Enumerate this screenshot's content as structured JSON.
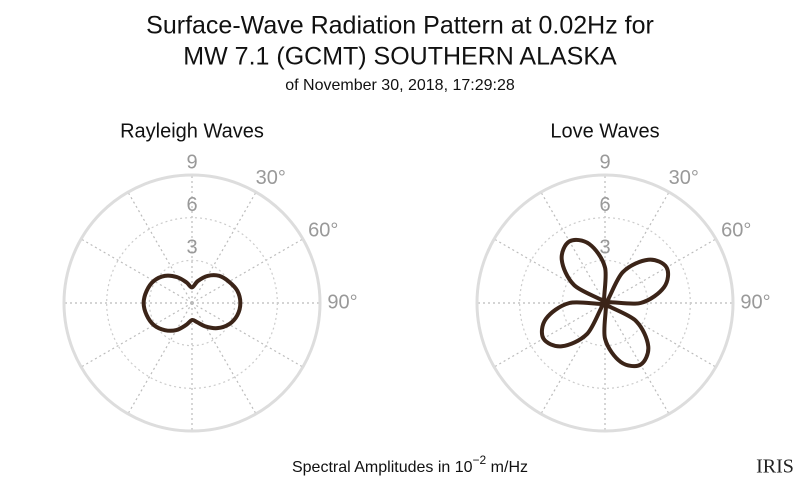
{
  "title": [
    "Surface-Wave Radiation Pattern at 0.02Hz for",
    "MW 7.1 (GCMT) SOUTHERN ALASKA"
  ],
  "subtitle": "of November 30, 2018, 17:29:28",
  "caption": {
    "text": "Spectral Amplitudes in 10",
    "sup": "−2",
    "unit": "m/Hz"
  },
  "logo": "IRIS",
  "chart_data": [
    {
      "type": "polar",
      "title": "Rayleigh Waves",
      "color": "#3b2418",
      "direction": "clockwise",
      "zero": "N",
      "rlim": [
        0,
        9
      ],
      "rticks": [
        3,
        6,
        9
      ],
      "thetaticks": [
        {
          "value": 30,
          "label": "30°"
        },
        {
          "value": 60,
          "label": "60°"
        },
        {
          "value": 90,
          "label": "90°"
        }
      ],
      "theta": [
        0,
        15,
        30,
        45,
        60,
        75,
        90,
        105,
        120,
        135,
        150,
        165,
        180,
        195,
        210,
        225,
        240,
        255,
        270,
        285,
        300,
        315,
        330,
        345
      ],
      "values": [
        1.1,
        1.6,
        2.2,
        2.7,
        3.0,
        3.3,
        3.4,
        3.3,
        3.0,
        2.5,
        1.9,
        1.4,
        1.2,
        1.6,
        2.2,
        2.7,
        3.1,
        3.3,
        3.4,
        3.3,
        3.1,
        2.7,
        2.1,
        1.5
      ]
    },
    {
      "type": "polar",
      "title": "Love Waves",
      "color": "#3b2418",
      "direction": "clockwise",
      "zero": "N",
      "rlim": [
        0,
        9
      ],
      "rticks": [
        3,
        6,
        9
      ],
      "thetaticks": [
        {
          "value": 30,
          "label": "30°"
        },
        {
          "value": 60,
          "label": "60°"
        },
        {
          "value": 90,
          "label": "90°"
        }
      ],
      "theta": [
        0,
        15,
        30,
        45,
        60,
        75,
        90,
        105,
        120,
        135,
        150,
        165,
        180,
        195,
        210,
        225,
        240,
        255,
        270,
        285,
        300,
        315,
        330,
        345
      ],
      "values": [
        2.5,
        0,
        2.5,
        4.3,
        5.0,
        4.3,
        2.5,
        0,
        2.5,
        4.3,
        5.0,
        4.3,
        2.5,
        0,
        2.5,
        4.3,
        5.0,
        4.3,
        2.5,
        0,
        2.5,
        4.3,
        5.0,
        4.3
      ]
    }
  ]
}
